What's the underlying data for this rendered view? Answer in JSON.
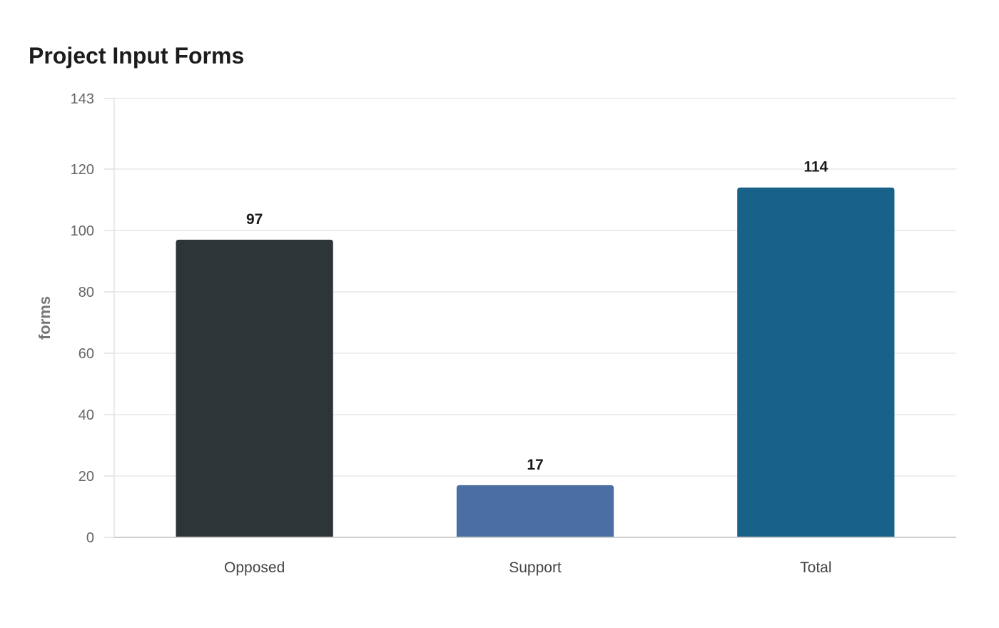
{
  "chart_data": {
    "type": "bar",
    "title": "Project Input Forms",
    "xlabel": "",
    "ylabel": "forms",
    "categories": [
      "Opposed",
      "Support",
      "Total"
    ],
    "values": [
      97,
      17,
      114
    ],
    "data_labels": [
      "97",
      "17",
      "114"
    ],
    "colors": [
      "#2e3538",
      "#4b6ea3",
      "#186188"
    ],
    "ylim": [
      0,
      143
    ],
    "yticks": [
      0,
      20,
      40,
      60,
      80,
      100,
      120,
      143
    ],
    "grid": true,
    "legend": "none"
  }
}
